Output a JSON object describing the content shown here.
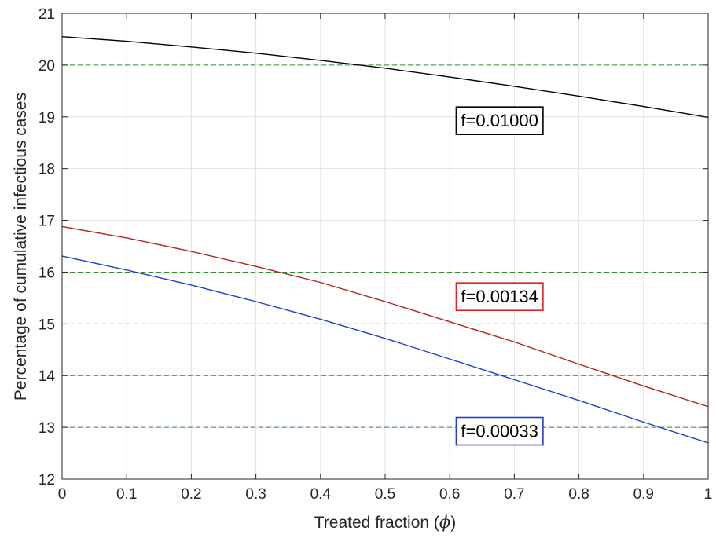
{
  "chart_data": {
    "type": "line",
    "xlabel": "Treated fraction (",
    "xlabel_symbol": "ϕ",
    "xlabel_close": ")",
    "ylabel": "Percentage of cumulative infectious cases",
    "xlim": [
      0,
      1
    ],
    "ylim": [
      12,
      21
    ],
    "xticks": [
      "0",
      "0.1",
      "0.2",
      "0.3",
      "0.4",
      "0.5",
      "0.6",
      "0.7",
      "0.8",
      "0.9",
      "1"
    ],
    "yticks": [
      "12",
      "13",
      "14",
      "15",
      "16",
      "17",
      "18",
      "19",
      "20",
      "21"
    ],
    "grid": true,
    "reference_lines": {
      "y": [
        13,
        14,
        15,
        16,
        20
      ],
      "color": "#2e8b2e",
      "style": "dashed"
    },
    "x": [
      0,
      0.1,
      0.2,
      0.3,
      0.4,
      0.5,
      0.6,
      0.7,
      0.8,
      0.9,
      1.0
    ],
    "series": [
      {
        "values": [
          20.55,
          20.46,
          20.35,
          20.23,
          20.09,
          19.94,
          19.77,
          19.59,
          19.4,
          19.2,
          18.99
        ],
        "color": "#000000",
        "annotation": {
          "text": "f=0.01000",
          "x": 0.61,
          "y": 18.9,
          "border": "#000000"
        }
      },
      {
        "values": [
          16.88,
          16.66,
          16.4,
          16.11,
          15.8,
          15.43,
          15.04,
          14.65,
          14.22,
          13.8,
          13.4
        ],
        "color": "#b22222",
        "annotation": {
          "text": "f=0.00134",
          "x": 0.61,
          "y": 15.5,
          "border": "#e02020"
        }
      },
      {
        "values": [
          16.31,
          16.04,
          15.75,
          15.43,
          15.09,
          14.72,
          14.32,
          13.92,
          13.52,
          13.1,
          12.7
        ],
        "color": "#1f3fd0",
        "annotation": {
          "text": "f=0.00033",
          "x": 0.61,
          "y": 12.9,
          "border": "#1f3fd0"
        }
      }
    ]
  }
}
